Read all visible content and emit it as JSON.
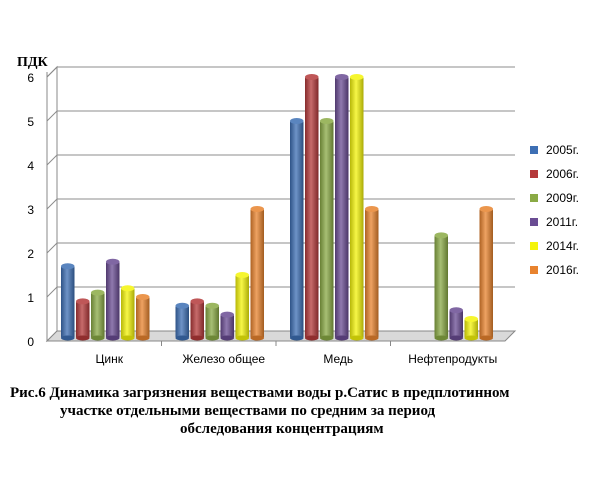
{
  "chart_data": {
    "type": "bar",
    "ylabel": "ПДК",
    "ylim": [
      0,
      6
    ],
    "yticks": [
      0,
      1,
      2,
      3,
      4,
      5,
      6
    ],
    "grid": true,
    "legend_position": "right",
    "categories": [
      "Цинк",
      "Железо общее",
      "Медь",
      "Нефтепродукты"
    ],
    "series": [
      {
        "name": "2005г.",
        "color": "#3d6fb4",
        "values": [
          1.7,
          0.8,
          5.0,
          null
        ]
      },
      {
        "name": "2006г.",
        "color": "#b4393a",
        "values": [
          0.9,
          0.9,
          6.0,
          null
        ]
      },
      {
        "name": "2009г.",
        "color": "#8aaa45",
        "values": [
          1.1,
          0.8,
          5.0,
          2.4
        ]
      },
      {
        "name": "2011г.",
        "color": "#6a4c93",
        "values": [
          1.8,
          0.6,
          6.0,
          0.7
        ]
      },
      {
        "name": "2014г.",
        "color": "#f4f40a",
        "values": [
          1.2,
          1.5,
          6.0,
          0.5
        ]
      },
      {
        "name": "2016г.",
        "color": "#e8832e",
        "values": [
          1.0,
          3.0,
          3.0,
          3.0
        ]
      }
    ]
  },
  "caption": {
    "line1": "Рис.6 Динамика загрязнения веществами воды р.Сатис в предплотинном",
    "line2": "участке отдельными веществами по средним за период",
    "line3": "обследования концентрациям"
  }
}
